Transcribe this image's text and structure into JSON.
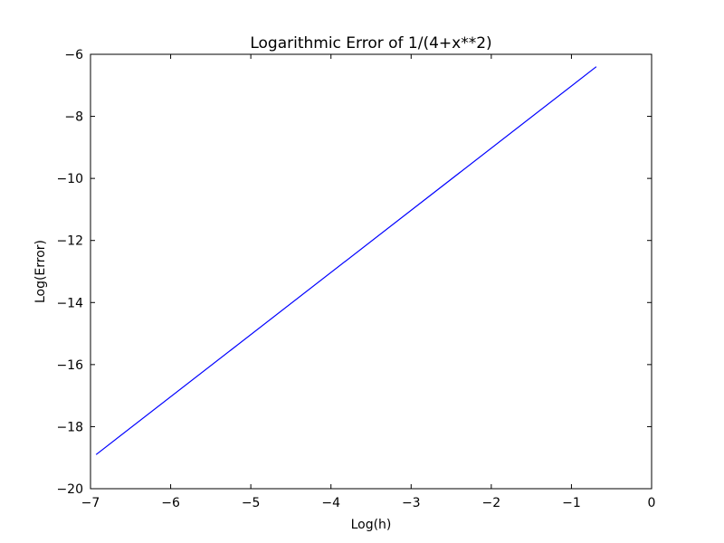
{
  "chart_data": {
    "type": "line",
    "title": "Logarithmic Error of 1/(4+x**2)",
    "xlabel": "Log(h)",
    "ylabel": "Log(Error)",
    "xlim": [
      -7,
      0
    ],
    "ylim": [
      -20,
      -6
    ],
    "xticks": [
      -7,
      -6,
      -5,
      -4,
      -3,
      -2,
      -1,
      0
    ],
    "xtick_labels": [
      "−7",
      "−6",
      "−5",
      "−4",
      "−3",
      "−2",
      "−1",
      "0"
    ],
    "yticks": [
      -20,
      -18,
      -16,
      -14,
      -12,
      -10,
      -8,
      -6
    ],
    "ytick_labels": [
      "−20",
      "−18",
      "−16",
      "−14",
      "−12",
      "−10",
      "−8",
      "−6"
    ],
    "grid": false,
    "series": [
      {
        "color": "#0000ff",
        "x": [
          -6.93,
          -0.69
        ],
        "y": [
          -18.9,
          -6.4
        ]
      }
    ]
  }
}
